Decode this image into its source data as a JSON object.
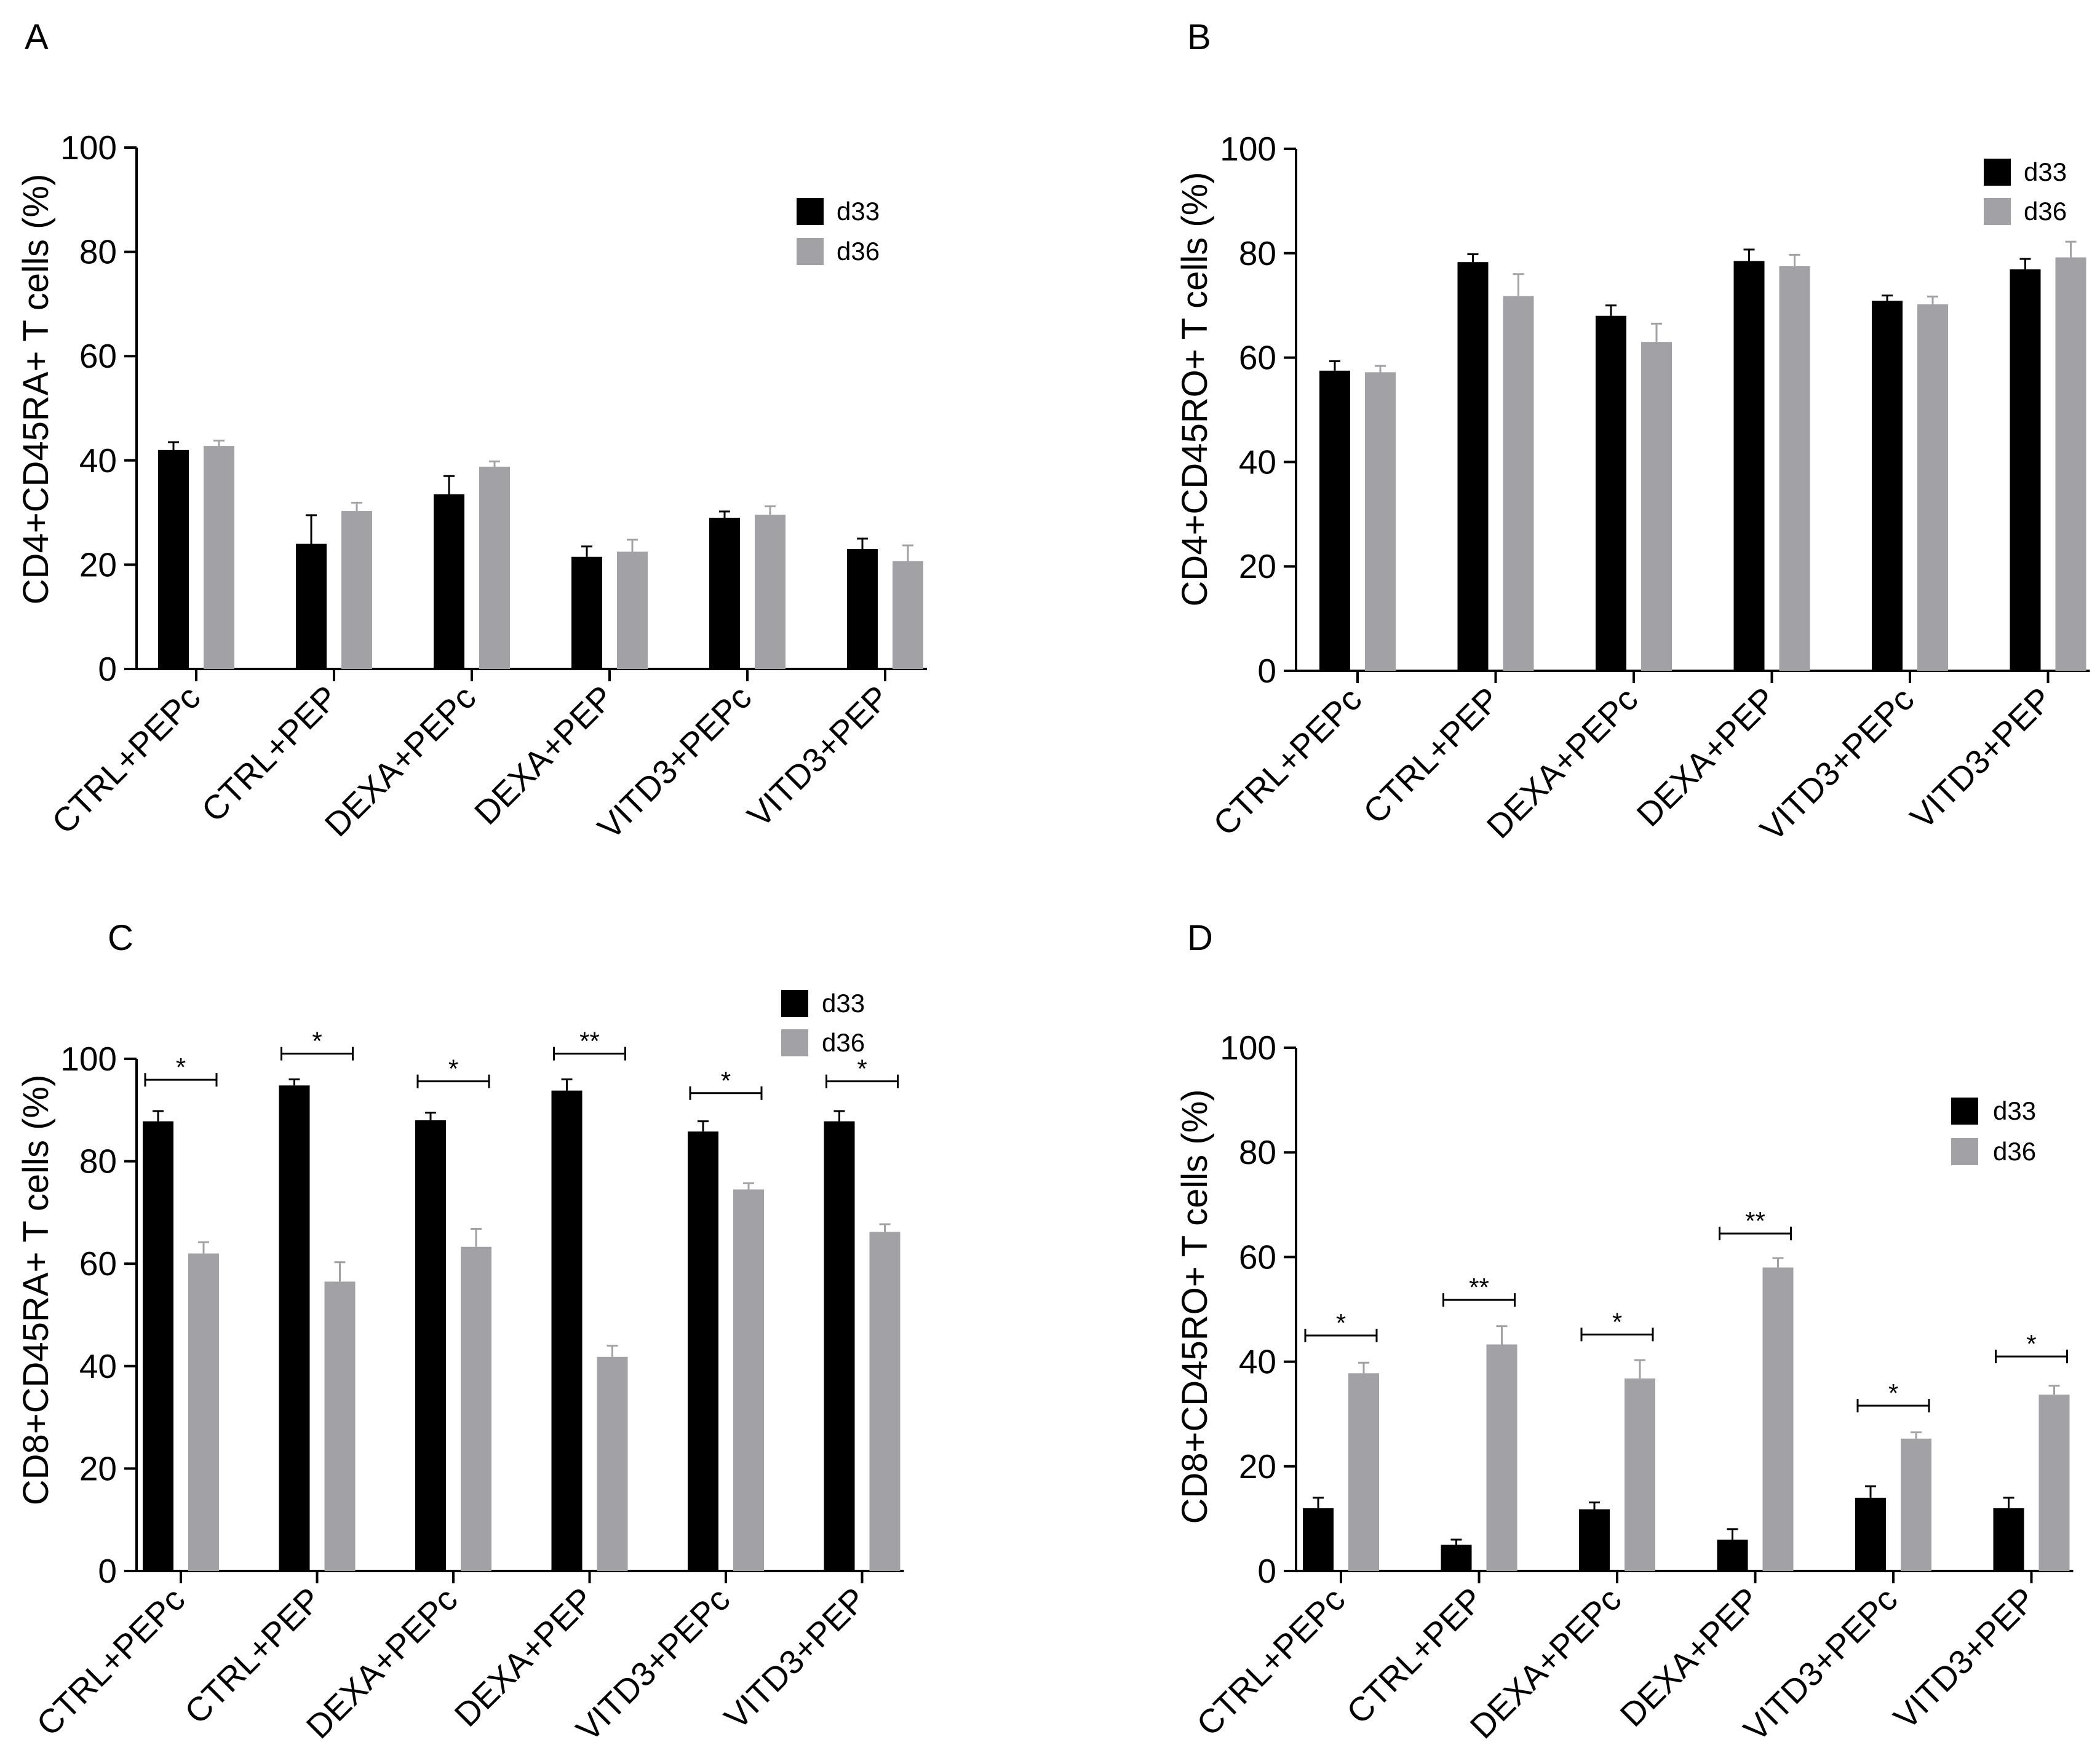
{
  "legend": {
    "series": [
      "d33",
      "d36"
    ]
  },
  "colors": {
    "d33": "#000000",
    "d36": "#a2a2a6",
    "axis": "#000000"
  },
  "chart_data": [
    {
      "panel": "A",
      "type": "bar",
      "ylabel": "CD4+CD45RA+ T cells (%)",
      "ylim": [
        0,
        100
      ],
      "yticks": [
        0,
        20,
        40,
        60,
        80,
        100
      ],
      "categories": [
        "CTRL+PEPc",
        "CTRL+PEP",
        "DEXA+PEPc",
        "DEXA+PEP",
        "VITD3+PEPc",
        "VITD3+PEP"
      ],
      "series": [
        {
          "name": "d33",
          "values": [
            42,
            24,
            33.5,
            21.5,
            29,
            23
          ],
          "errors": [
            1.5,
            5.5,
            3.5,
            2,
            1.2,
            2
          ]
        },
        {
          "name": "d36",
          "values": [
            42.8,
            30.3,
            38.8,
            22.5,
            29.6,
            20.7
          ],
          "errors": [
            1,
            1.6,
            1,
            2.3,
            1.6,
            3
          ]
        }
      ],
      "significance": [],
      "legend_position": "top-right"
    },
    {
      "panel": "B",
      "type": "bar",
      "ylabel": "CD4+CD45RO+ T cells (%)",
      "ylim": [
        0,
        100
      ],
      "yticks": [
        0,
        20,
        40,
        60,
        80,
        100
      ],
      "categories": [
        "CTRL+PEPc",
        "CTRL+PEP",
        "DEXA+PEPc",
        "DEXA+PEP",
        "VITD3+PEPc",
        "VITD3+PEP"
      ],
      "series": [
        {
          "name": "d33",
          "values": [
            57.5,
            78.3,
            68,
            78.5,
            70.9,
            76.9
          ],
          "errors": [
            1.8,
            1.5,
            2,
            2.2,
            1,
            2
          ]
        },
        {
          "name": "d36",
          "values": [
            57.2,
            71.8,
            63,
            77.5,
            70.2,
            79.2
          ],
          "errors": [
            1.2,
            4.2,
            3.5,
            2.2,
            1.5,
            3
          ]
        }
      ],
      "significance": [],
      "legend_position": "top-right"
    },
    {
      "panel": "C",
      "type": "bar",
      "ylabel": "CD8+CD45RA+ T cells (%)",
      "ylim": [
        0,
        100
      ],
      "yticks": [
        0,
        20,
        40,
        60,
        80,
        100
      ],
      "categories": [
        "CTRL+PEPc",
        "CTRL+PEP",
        "DEXA+PEPc",
        "DEXA+PEP",
        "VITD3+PEPc",
        "VITD3+PEP"
      ],
      "series": [
        {
          "name": "d33",
          "values": [
            87.8,
            94.8,
            88,
            93.8,
            85.8,
            87.8
          ],
          "errors": [
            2,
            1.2,
            1.5,
            2.2,
            2,
            2
          ]
        },
        {
          "name": "d36",
          "values": [
            62,
            56.5,
            63.3,
            41.8,
            74.5,
            66.2
          ],
          "errors": [
            2.2,
            3.8,
            3.5,
            2.2,
            1.2,
            1.5
          ]
        }
      ],
      "significance": [
        {
          "label": "*",
          "level": 95.9
        },
        {
          "label": "*",
          "level": 101
        },
        {
          "label": "*",
          "level": 95.6
        },
        {
          "label": "**",
          "level": 101
        },
        {
          "label": "*",
          "level": 93.3
        },
        {
          "label": "*",
          "level": 95.6
        }
      ],
      "legend_position": "top-right"
    },
    {
      "panel": "D",
      "type": "bar",
      "ylabel": "CD8+CD45RO+ T cells (%)",
      "ylim": [
        0,
        100
      ],
      "yticks": [
        0,
        20,
        40,
        60,
        80,
        100
      ],
      "categories": [
        "CTRL+PEPc",
        "CTRL+PEP",
        "DEXA+PEPc",
        "DEXA+PEP",
        "VITD3+PEPc",
        "VITD3+PEP"
      ],
      "series": [
        {
          "name": "d33",
          "values": [
            12,
            5,
            11.8,
            6,
            14,
            12
          ],
          "errors": [
            2,
            1,
            1.3,
            2,
            2.2,
            2
          ]
        },
        {
          "name": "d36",
          "values": [
            37.8,
            43.3,
            36.8,
            58,
            25.3,
            33.7
          ],
          "errors": [
            2,
            3.5,
            3.5,
            1.8,
            1.2,
            1.7
          ]
        }
      ],
      "significance": [
        {
          "label": "*",
          "level": 45
        },
        {
          "label": "**",
          "level": 51.8
        },
        {
          "label": "*",
          "level": 45.2
        },
        {
          "label": "**",
          "level": 64.5
        },
        {
          "label": "*",
          "level": 31.6
        },
        {
          "label": "*",
          "level": 41
        }
      ],
      "legend_position": "top-right"
    }
  ]
}
